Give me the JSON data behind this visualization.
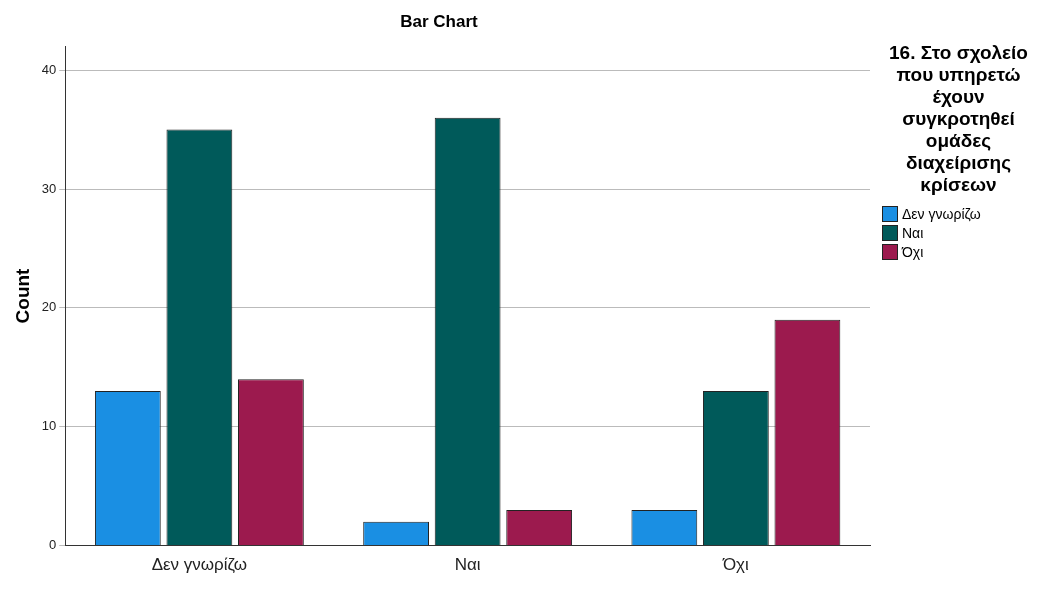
{
  "chart_data": {
    "type": "bar",
    "title": "Bar Chart",
    "ylabel": "Count",
    "legend_title": "16. Στο σχολείο που υπηρετώ έχουν συγκροτηθεί ομάδες διαχείρισης κρίσεων",
    "categories": [
      "Δεν γνωρίζω",
      "Ναι",
      "Όχι"
    ],
    "series": [
      {
        "name": "Δεν γνωρίζω",
        "color": "#1a8fe3",
        "values": [
          13,
          2,
          3
        ]
      },
      {
        "name": "Ναι",
        "color": "#005a5a",
        "values": [
          35,
          36,
          13
        ]
      },
      {
        "name": "Όχι",
        "color": "#9c1a4e",
        "values": [
          14,
          3,
          19
        ]
      }
    ],
    "ylim": [
      0,
      42
    ],
    "yticks": [
      0,
      10,
      20,
      30,
      40
    ],
    "grid": "y",
    "legend": "right"
  }
}
